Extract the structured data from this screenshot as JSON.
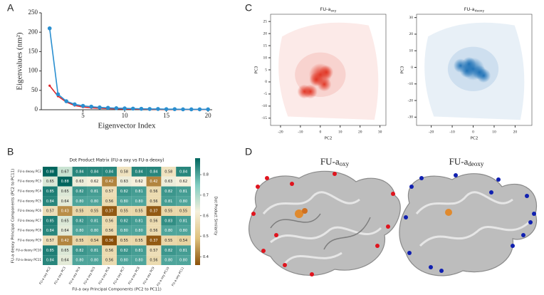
{
  "panels": {
    "a": "A",
    "b": "B",
    "c": "C",
    "d": "D"
  },
  "structures": {
    "left_title": "FU-a",
    "left_subscript": "oxy",
    "right_title": "FU-a",
    "right_subscript": "deoxy"
  },
  "chart_data": [
    {
      "type": "line",
      "xlabel": "Eigenvector Index",
      "ylabel": "Eigenvalues (nm²)",
      "xlim": [
        0,
        20.5
      ],
      "ylim": [
        0,
        250
      ],
      "xticks": [
        5,
        10,
        15,
        20
      ],
      "yticks": [
        0,
        50,
        100,
        150,
        200,
        250
      ],
      "x": [
        1,
        2,
        3,
        4,
        5,
        6,
        7,
        8,
        9,
        10,
        11,
        12,
        13,
        14,
        15,
        16,
        17,
        18,
        19,
        20
      ],
      "series": [
        {
          "color": "#e0262a",
          "values": [
            62,
            35,
            20,
            11,
            7,
            5,
            4,
            3,
            2.5,
            2,
            1.8,
            1.5,
            1.3,
            1.1,
            1,
            0.9,
            0.8,
            0.7,
            0.6,
            0.5
          ]
        },
        {
          "color": "#2a8fd0",
          "values": [
            210,
            40,
            22,
            14,
            10,
            8,
            6,
            5,
            4,
            3.5,
            3,
            2.5,
            2,
            2,
            1.5,
            1.5,
            1,
            1,
            1,
            1
          ]
        }
      ]
    },
    {
      "type": "heatmap",
      "title": "Dot Product Matrix (FU-a oxy vs FU-a deoxy)",
      "xlabel": "FU-a oxy Principal Components (PC2 to PC11)",
      "ylabel": "FU-a deoxy Principal Components (PC2 to PC11)",
      "colorbar_label": "Dot Product Similarity",
      "clim": [
        0.36,
        0.88
      ],
      "cticks": [
        0.4,
        0.5,
        0.6,
        0.7,
        0.8
      ],
      "colormap": [
        "#8c510a",
        "#dfc27d",
        "#f6f0dc",
        "#80cdc1",
        "#01665e"
      ],
      "columns": [
        "FU-a oxy PC2",
        "FU-a oxy PC3",
        "FU-a oxy PC4",
        "FU-a oxy PC5",
        "FU-a oxy PC6",
        "FU-a oxy PC7",
        "FU-a oxy PC8",
        "FU-a oxy PC9",
        "FU-a oxy PC10",
        "FU-a oxy PC11"
      ],
      "rows": [
        "FU-a deoxy PC2",
        "FU-a deoxy PC3",
        "FU-a deoxy PC4",
        "FU-a deoxy PC5",
        "FU-a deoxy PC6",
        "FU-a deoxy PC7",
        "FU-a deoxy PC8",
        "FU-a deoxy PC9",
        "FU-a deoxy PC10",
        "FU-a deoxy PC11"
      ],
      "z": [
        [
          0.88,
          0.67,
          0.84,
          0.84,
          0.84,
          0.58,
          0.84,
          0.84,
          0.58,
          0.84
        ],
        [
          0.65,
          0.88,
          0.63,
          0.62,
          0.42,
          0.63,
          0.62,
          0.42,
          0.63,
          0.62
        ],
        [
          0.85,
          0.65,
          0.82,
          0.81,
          0.57,
          0.82,
          0.81,
          0.56,
          0.82,
          0.81
        ],
        [
          0.84,
          0.64,
          0.8,
          0.8,
          0.56,
          0.8,
          0.8,
          0.56,
          0.81,
          0.8
        ],
        [
          0.57,
          0.43,
          0.55,
          0.55,
          0.37,
          0.55,
          0.55,
          0.37,
          0.55,
          0.55
        ],
        [
          0.85,
          0.65,
          0.82,
          0.81,
          0.56,
          0.82,
          0.81,
          0.56,
          0.83,
          0.81
        ],
        [
          0.84,
          0.64,
          0.8,
          0.8,
          0.56,
          0.8,
          0.8,
          0.56,
          0.8,
          0.8
        ],
        [
          0.57,
          0.42,
          0.55,
          0.54,
          0.36,
          0.55,
          0.55,
          0.37,
          0.55,
          0.54
        ],
        [
          0.85,
          0.65,
          0.82,
          0.81,
          0.56,
          0.82,
          0.81,
          0.57,
          0.82,
          0.81
        ],
        [
          0.84,
          0.64,
          0.8,
          0.8,
          0.56,
          0.8,
          0.8,
          0.56,
          0.8,
          0.8
        ]
      ],
      "value_labels": [
        [
          "0.88",
          "0.67",
          "0.84",
          "0.84",
          "0.84",
          "0.58",
          "0.84",
          "0.84",
          "0.58",
          "0.84"
        ],
        [
          "0.65",
          "0.88",
          "0.63",
          "0.62",
          "0.42",
          "0.63",
          "0.62",
          "0.42",
          "0.63",
          "0.62"
        ],
        [
          "0.85",
          "0.65",
          "0.82",
          "0.81",
          "0.57",
          "0.82",
          "0.81",
          "0.56",
          "0.82",
          "0.81"
        ],
        [
          "0.84",
          "0.64",
          "0.80",
          "0.80",
          "0.56",
          "0.80",
          "0.80",
          "0.56",
          "0.81",
          "0.80"
        ],
        [
          "0.57",
          "0.43",
          "0.55",
          "0.55",
          "0.37",
          "0.55",
          "0.55",
          "0.37",
          "0.55",
          "0.55"
        ],
        [
          "0.85",
          "0.65",
          "0.82",
          "0.81",
          "0.56",
          "0.82",
          "0.81",
          "0.56",
          "0.83",
          "0.81"
        ],
        [
          "0.84",
          "0.64",
          "0.80",
          "0.80",
          "0.56",
          "0.80",
          "0.80",
          "0.56",
          "0.80",
          "0.80"
        ],
        [
          "0.57",
          "0.42",
          "0.55",
          "0.54",
          "0.36",
          "0.55",
          "0.55",
          "0.37",
          "0.55",
          "0.54"
        ],
        [
          "0.85",
          "0.65",
          "0.82",
          "0.81",
          "0.56",
          "0.82",
          "0.81",
          "0.57",
          "0.82",
          "0.81"
        ],
        [
          "0.84",
          "0.64",
          "0.80",
          "0.80",
          "0.56",
          "0.80",
          "0.80",
          "0.56",
          "0.80",
          "0.80"
        ]
      ]
    },
    {
      "type": "density",
      "title": "FU-a",
      "title_subscript": "oxy",
      "xlabel": "PC2",
      "ylabel": "PC3",
      "xlim": [
        -25,
        33
      ],
      "ylim": [
        -18,
        28
      ],
      "xticks": [
        -20,
        -10,
        0,
        10,
        20,
        30
      ],
      "yticks": [
        -15,
        -10,
        -5,
        0,
        5,
        10,
        15,
        20,
        25
      ],
      "color": "#e0301e",
      "x": [
        0,
        -2,
        2,
        -5,
        3,
        -8
      ],
      "y": [
        3,
        1,
        -1,
        -4,
        4,
        -4
      ]
    },
    {
      "type": "density",
      "title": "FU-a",
      "title_subscript": "deoxy",
      "xlabel": "PC2",
      "ylabel": "PC3",
      "xlim": [
        -27,
        28
      ],
      "ylim": [
        -35,
        32
      ],
      "xticks": [
        -20,
        -10,
        0,
        10,
        20
      ],
      "yticks": [
        -30,
        -20,
        -10,
        0,
        10,
        20,
        30
      ],
      "color": "#1a6fb5",
      "x": [
        0,
        -3,
        3,
        5,
        -6,
        -2
      ],
      "y": [
        -1,
        -2,
        -3,
        -5,
        1,
        2
      ]
    }
  ]
}
